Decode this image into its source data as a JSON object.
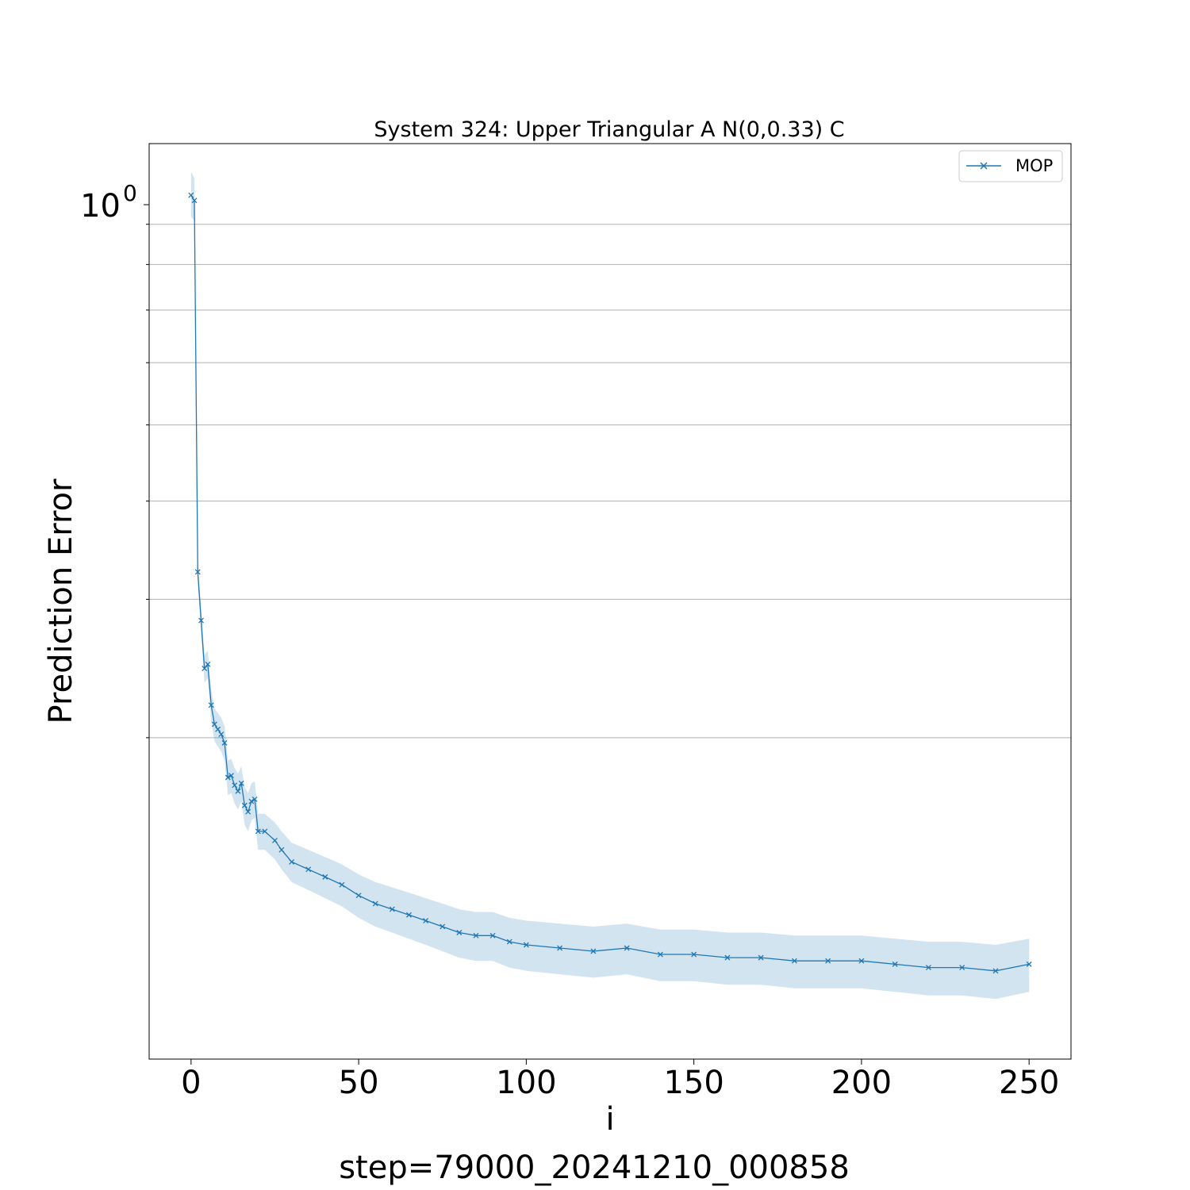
{
  "chart_data": {
    "type": "line",
    "title": "System 324: Upper Triangular A N(0,0.33) C",
    "xlabel": "i",
    "ylabel": "Prediction Error",
    "footer": "step=79000_20241210_000858",
    "x_ticks": [
      0,
      50,
      100,
      150,
      200,
      250
    ],
    "x_tick_labels": [
      "0",
      "50",
      "100",
      "150",
      "200",
      "250"
    ],
    "y_tick_label": {
      "base": "10",
      "exponent": "0",
      "value": 1.0
    },
    "y_scale": "log",
    "xlim": [
      -12.5,
      262.5
    ],
    "ylim": [
      0.078,
      1.14
    ],
    "grid": "y",
    "legend_position": "upper right",
    "series_color": "#1f77b4",
    "band_color": "#1f77b4",
    "series": [
      {
        "name": "MOP",
        "marker": "x",
        "x": [
          0,
          1,
          2,
          3,
          4,
          5,
          6,
          7,
          8,
          9,
          10,
          11,
          12,
          13,
          14,
          15,
          16,
          17,
          18,
          19,
          20,
          22,
          25,
          27,
          30,
          35,
          40,
          45,
          50,
          55,
          60,
          65,
          70,
          75,
          80,
          85,
          90,
          95,
          100,
          110,
          120,
          130,
          140,
          150,
          160,
          170,
          180,
          190,
          200,
          210,
          220,
          230,
          240,
          250
        ],
        "y": [
          0.98,
          0.965,
          0.325,
          0.282,
          0.245,
          0.248,
          0.22,
          0.208,
          0.205,
          0.202,
          0.197,
          0.178,
          0.179,
          0.174,
          0.171,
          0.175,
          0.164,
          0.161,
          0.166,
          0.167,
          0.152,
          0.152,
          0.148,
          0.144,
          0.139,
          0.136,
          0.133,
          0.13,
          0.126,
          0.123,
          0.121,
          0.119,
          0.117,
          0.115,
          0.113,
          0.112,
          0.112,
          0.11,
          0.109,
          0.108,
          0.107,
          0.108,
          0.106,
          0.106,
          0.105,
          0.105,
          0.104,
          0.104,
          0.104,
          0.103,
          0.102,
          0.102,
          0.101,
          0.103
        ],
        "band_lower": [
          0.92,
          0.91,
          0.315,
          0.272,
          0.235,
          0.238,
          0.21,
          0.198,
          0.195,
          0.192,
          0.187,
          0.169,
          0.17,
          0.165,
          0.162,
          0.166,
          0.155,
          0.152,
          0.157,
          0.158,
          0.144,
          0.144,
          0.14,
          0.136,
          0.131,
          0.128,
          0.125,
          0.122,
          0.118,
          0.115,
          0.113,
          0.111,
          0.109,
          0.107,
          0.105,
          0.104,
          0.104,
          0.102,
          0.101,
          0.1,
          0.099,
          0.1,
          0.098,
          0.098,
          0.097,
          0.097,
          0.096,
          0.096,
          0.096,
          0.095,
          0.094,
          0.094,
          0.093,
          0.095
        ],
        "band_upper": [
          1.05,
          1.03,
          0.335,
          0.292,
          0.255,
          0.258,
          0.23,
          0.218,
          0.215,
          0.212,
          0.207,
          0.187,
          0.188,
          0.183,
          0.18,
          0.184,
          0.173,
          0.17,
          0.175,
          0.176,
          0.16,
          0.16,
          0.156,
          0.152,
          0.147,
          0.144,
          0.141,
          0.138,
          0.134,
          0.131,
          0.129,
          0.127,
          0.125,
          0.123,
          0.121,
          0.12,
          0.12,
          0.118,
          0.117,
          0.116,
          0.115,
          0.116,
          0.114,
          0.114,
          0.113,
          0.113,
          0.112,
          0.112,
          0.112,
          0.111,
          0.11,
          0.11,
          0.109,
          0.111
        ]
      }
    ]
  }
}
